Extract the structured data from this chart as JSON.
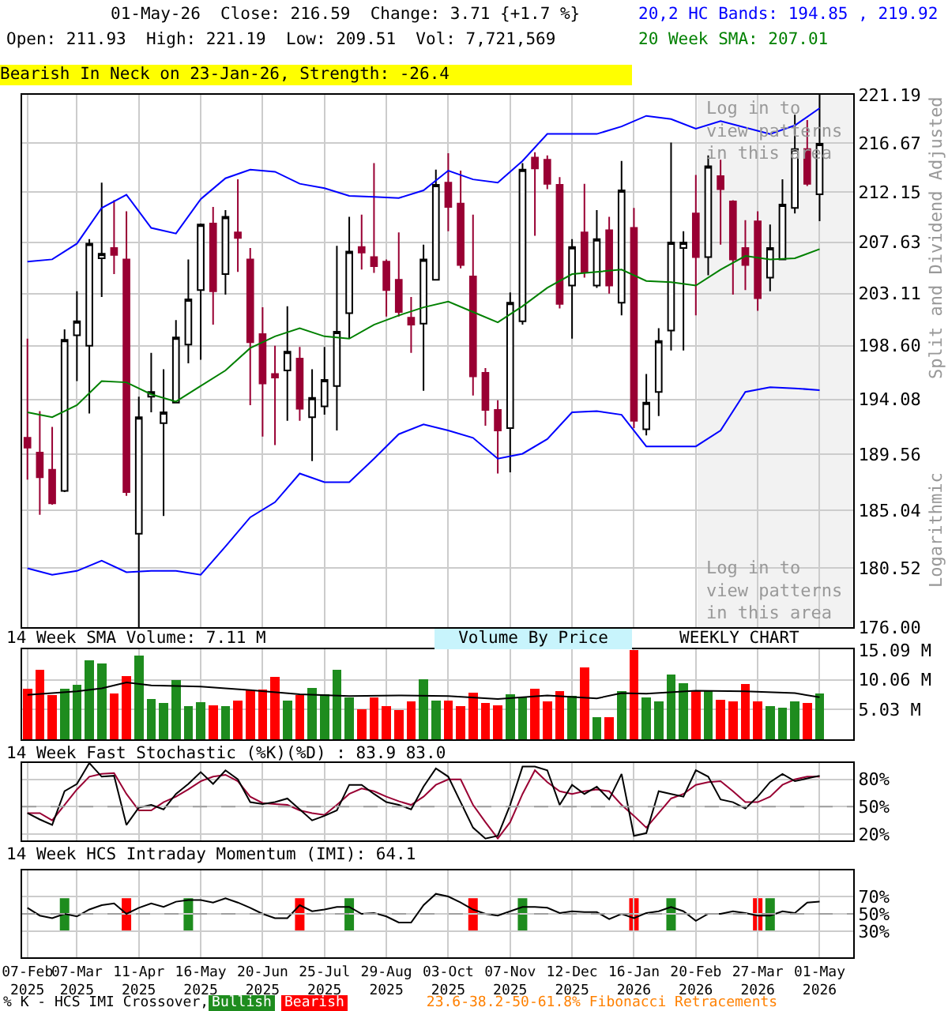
{
  "chart_data": [
    {
      "type": "candlestick",
      "title": "01-May-26  Close: 216.59  Change: 3.71 {+1.7 %}",
      "subtitle": "Open: 211.93  High: 221.19  Low: 209.51  Vol: 7,721,569",
      "ylabel": "Split and Dividend Adjusted",
      "annotations": [
        "Bearish In Neck on 23-Jan-26, Strength: -26.4",
        "Logarithmic"
      ],
      "x": [
        "2025-02-07",
        "2025-02-14",
        "2025-02-21",
        "2025-02-28",
        "2025-03-07",
        "2025-03-14",
        "2025-03-21",
        "2025-03-28",
        "2025-04-04",
        "2025-04-11",
        "2025-04-18",
        "2025-04-25",
        "2025-05-02",
        "2025-05-09",
        "2025-05-16",
        "2025-05-23",
        "2025-05-30",
        "2025-06-06",
        "2025-06-13",
        "2025-06-20",
        "2025-06-27",
        "2025-07-04",
        "2025-07-11",
        "2025-07-18",
        "2025-07-25",
        "2025-08-01",
        "2025-08-08",
        "2025-08-15",
        "2025-08-22",
        "2025-08-29",
        "2025-09-05",
        "2025-09-12",
        "2025-09-19",
        "2025-09-26",
        "2025-10-03",
        "2025-10-10",
        "2025-10-17",
        "2025-10-24",
        "2025-10-31",
        "2025-11-07",
        "2025-11-14",
        "2025-11-21",
        "2025-11-28",
        "2025-12-05",
        "2025-12-12",
        "2025-12-19",
        "2025-12-26",
        "2026-01-02",
        "2026-01-09",
        "2026-01-16",
        "2026-01-23",
        "2026-01-30",
        "2026-02-06",
        "2026-02-13",
        "2026-02-20",
        "2026-02-27",
        "2026-03-06",
        "2026-03-13",
        "2026-03-20",
        "2026-03-27",
        "2026-04-03",
        "2026-04-10",
        "2026-04-17",
        "2026-04-24",
        "2026-05-01"
      ],
      "ohlc": [
        [
          190.9,
          199.2,
          187.5,
          190.1
        ],
        [
          189.7,
          193.1,
          184.7,
          187.7
        ],
        [
          188.3,
          191.8,
          185.5,
          185.6
        ],
        [
          186.6,
          200.0,
          186.5,
          199.1
        ],
        [
          199.5,
          203.3,
          195.6,
          200.7
        ],
        [
          198.6,
          207.9,
          192.9,
          207.5
        ],
        [
          206.2,
          213.0,
          202.8,
          206.6
        ],
        [
          207.1,
          211.4,
          204.8,
          206.5
        ],
        [
          206.1,
          210.4,
          186.2,
          186.5
        ],
        [
          183.2,
          194.3,
          176.0,
          192.6
        ],
        [
          194.3,
          198.0,
          193.0,
          194.7
        ],
        [
          192.1,
          196.6,
          184.6,
          193.0
        ],
        [
          193.8,
          200.8,
          193.8,
          199.3
        ],
        [
          198.7,
          206.1,
          197.1,
          202.6
        ],
        [
          203.4,
          209.3,
          197.4,
          209.2
        ],
        [
          209.3,
          210.8,
          200.4,
          203.3
        ],
        [
          204.8,
          210.5,
          203.0,
          209.9
        ],
        [
          208.5,
          213.3,
          205.0,
          208.0
        ],
        [
          206.1,
          207.1,
          193.6,
          198.9
        ],
        [
          199.6,
          201.9,
          191.0,
          195.4
        ],
        [
          196.2,
          198.6,
          190.3,
          195.9
        ],
        [
          196.5,
          202.0,
          192.3,
          198.1
        ],
        [
          197.5,
          198.5,
          192.3,
          193.3
        ],
        [
          192.6,
          196.6,
          189.0,
          194.2
        ],
        [
          193.5,
          198.5,
          192.8,
          195.7
        ],
        [
          195.2,
          207.3,
          191.5,
          199.8
        ],
        [
          201.4,
          209.9,
          199.2,
          206.8
        ],
        [
          207.2,
          210.1,
          205.2,
          206.7
        ],
        [
          206.3,
          214.8,
          204.9,
          205.5
        ],
        [
          205.9,
          206.1,
          201.1,
          203.4
        ],
        [
          204.3,
          208.5,
          201.1,
          201.5
        ],
        [
          201.0,
          202.8,
          198.0,
          200.4
        ],
        [
          200.5,
          207.4,
          194.8,
          206.1
        ],
        [
          204.3,
          214.2,
          204.3,
          212.8
        ],
        [
          213.0,
          215.7,
          208.6,
          210.8
        ],
        [
          211.1,
          214.1,
          205.3,
          205.6
        ],
        [
          204.6,
          210.1,
          194.4,
          196.0
        ],
        [
          196.3,
          196.7,
          191.9,
          193.2
        ],
        [
          193.2,
          194.0,
          188.0,
          191.5
        ],
        [
          191.7,
          203.2,
          188.1,
          202.3
        ],
        [
          200.7,
          214.8,
          200.4,
          214.2
        ],
        [
          215.3,
          215.8,
          208.2,
          214.3
        ],
        [
          215.1,
          215.5,
          212.4,
          212.9
        ],
        [
          212.8,
          213.5,
          201.8,
          202.2
        ],
        [
          203.8,
          207.9,
          199.2,
          207.2
        ],
        [
          208.5,
          212.9,
          204.5,
          205.0
        ],
        [
          203.8,
          210.5,
          203.6,
          207.9
        ],
        [
          208.7,
          209.9,
          203.1,
          203.8
        ],
        [
          202.3,
          215.0,
          201.2,
          212.3
        ],
        [
          208.9,
          210.7,
          191.7,
          192.3
        ],
        [
          191.6,
          196.2,
          191.1,
          193.8
        ],
        [
          194.7,
          200.1,
          192.7,
          199.0
        ],
        [
          199.9,
          216.7,
          198.2,
          207.6
        ],
        [
          207.1,
          208.6,
          198.2,
          207.6
        ],
        [
          210.2,
          213.7,
          201.2,
          206.3
        ],
        [
          206.3,
          215.5,
          204.7,
          214.5
        ],
        [
          213.6,
          215.1,
          207.4,
          212.4
        ],
        [
          211.3,
          211.4,
          203.0,
          206.1
        ],
        [
          207.1,
          209.6,
          203.4,
          205.6
        ],
        [
          209.5,
          210.4,
          201.6,
          202.7
        ],
        [
          204.5,
          209.2,
          203.3,
          207.1
        ],
        [
          206.1,
          213.3,
          206.1,
          211.0
        ],
        [
          210.7,
          219.3,
          210.2,
          216.1
        ],
        [
          216.1,
          218.8,
          212.7,
          212.9
        ],
        [
          211.93,
          221.19,
          209.51,
          216.59
        ]
      ],
      "series": [
        {
          "type": "line",
          "name": "20,2 HC Bands: 194.85 , 219.92",
          "color": "#0000ff",
          "x": [
            "2025-02-07",
            "2025-02-21",
            "2025-03-07",
            "2025-03-21",
            "2025-04-04",
            "2025-04-18",
            "2025-05-02",
            "2025-05-16",
            "2025-05-30",
            "2025-06-13",
            "2025-06-27",
            "2025-07-11",
            "2025-07-25",
            "2025-08-08",
            "2025-08-22",
            "2025-09-05",
            "2025-09-19",
            "2025-10-03",
            "2025-10-17",
            "2025-10-31",
            "2025-11-14",
            "2025-11-28",
            "2025-12-12",
            "2025-12-26",
            "2026-01-09",
            "2026-01-23",
            "2026-02-06",
            "2026-02-20",
            "2026-03-06",
            "2026-03-20",
            "2026-04-03",
            "2026-04-17",
            "2026-05-01"
          ],
          "values": [
            205.9,
            206.1,
            207.5,
            210.7,
            211.9,
            208.9,
            208.4,
            211.5,
            213.4,
            214.2,
            214.0,
            212.9,
            212.5,
            211.8,
            211.7,
            211.6,
            212.3,
            214.1,
            213.3,
            213.0,
            215.0,
            217.5,
            217.5,
            217.5,
            218.2,
            219.2,
            218.9,
            218.0,
            218.7,
            218.1,
            217.5,
            218.3,
            219.92
          ]
        },
        {
          "type": "line",
          "color": "#0000ff",
          "x": [
            "2025-02-07",
            "2025-02-21",
            "2025-03-07",
            "2025-03-21",
            "2025-04-04",
            "2025-04-18",
            "2025-05-02",
            "2025-05-16",
            "2025-05-30",
            "2025-06-13",
            "2025-06-27",
            "2025-07-11",
            "2025-07-25",
            "2025-08-08",
            "2025-08-22",
            "2025-09-05",
            "2025-09-19",
            "2025-10-03",
            "2025-10-17",
            "2025-10-31",
            "2025-11-14",
            "2025-11-28",
            "2025-12-12",
            "2025-12-26",
            "2026-01-09",
            "2026-01-23",
            "2026-02-06",
            "2026-02-20",
            "2026-03-06",
            "2026-03-20",
            "2026-04-03",
            "2026-04-17",
            "2026-05-01"
          ],
          "values": [
            180.5,
            180.0,
            180.3,
            181.1,
            180.2,
            180.3,
            180.3,
            180.0,
            182.2,
            184.5,
            185.7,
            188.0,
            187.3,
            187.3,
            189.2,
            191.2,
            192.0,
            191.5,
            190.9,
            189.2,
            189.6,
            190.8,
            193.0,
            193.1,
            192.8,
            190.2,
            190.2,
            190.2,
            191.5,
            194.7,
            195.1,
            195.0,
            194.85
          ]
        },
        {
          "type": "line",
          "name": "20 Week SMA: 207.01",
          "color": "#008000",
          "x": [
            "2025-02-07",
            "2025-02-21",
            "2025-03-07",
            "2025-03-21",
            "2025-04-04",
            "2025-04-18",
            "2025-05-02",
            "2025-05-16",
            "2025-05-30",
            "2025-06-13",
            "2025-06-27",
            "2025-07-11",
            "2025-07-25",
            "2025-08-08",
            "2025-08-22",
            "2025-09-05",
            "2025-09-19",
            "2025-10-03",
            "2025-10-17",
            "2025-10-31",
            "2025-11-14",
            "2025-11-28",
            "2025-12-12",
            "2025-12-26",
            "2026-01-09",
            "2026-01-23",
            "2026-02-06",
            "2026-02-20",
            "2026-03-06",
            "2026-03-20",
            "2026-04-03",
            "2026-04-17",
            "2026-05-01"
          ],
          "values": [
            193.0,
            192.6,
            193.6,
            195.6,
            195.5,
            194.5,
            193.9,
            195.2,
            196.5,
            198.4,
            199.4,
            200.1,
            199.4,
            199.2,
            200.4,
            201.2,
            201.9,
            202.4,
            201.5,
            200.6,
            202.0,
            203.6,
            204.8,
            205.0,
            205.2,
            204.2,
            204.1,
            203.8,
            205.2,
            206.4,
            206.1,
            206.2,
            207.01
          ]
        }
      ],
      "xlim": [
        "2025-02-04",
        "2026-05-20"
      ],
      "ylim": [
        176,
        221.19
      ],
      "xticks": [
        {
          "value": "2025-02-07",
          "label": null
        },
        {
          "value": "2025-03-07",
          "label": null
        },
        {
          "value": "2025-04-11",
          "label": null
        },
        {
          "value": "2025-05-16",
          "label": null
        },
        {
          "value": "2025-06-20",
          "label": null
        },
        {
          "value": "2025-07-25",
          "label": null
        },
        {
          "value": "2025-08-29",
          "label": null
        },
        {
          "value": "2025-10-03",
          "label": null
        },
        {
          "value": "2025-11-07",
          "label": null
        },
        {
          "value": "2025-12-12",
          "label": null
        },
        {
          "value": "2026-01-16",
          "label": null
        },
        {
          "value": "2026-02-20",
          "label": null
        },
        {
          "value": "2026-03-27",
          "label": null
        },
        {
          "value": "2026-05-01",
          "label": null
        }
      ],
      "yticks": [
        {
          "value": 176,
          "label": "176.00"
        },
        180.52,
        185.04,
        189.56,
        194.08,
        {
          "value": 198.6,
          "label": "198.60"
        },
        203.11,
        207.63,
        212.15,
        216.67,
        221.19
      ],
      "log": true,
      "grid": true,
      "legend": "top right",
      "tick_labels": "y",
      "bands": [
        {
          "axis": "x",
          "from": "2026-02-21",
          "to": "2026-05-20",
          "label": "Log in to view patterns in this area",
          "color": "#f2f2f2"
        }
      ]
    },
    {
      "type": "bar",
      "title": "14 Week SMA Volume: 7.11 M",
      "annotations": [
        "Volume By Price",
        "WEEKLY CHART"
      ],
      "x": [
        "2025-02-07",
        "2025-02-14",
        "2025-02-21",
        "2025-02-28",
        "2025-03-07",
        "2025-03-14",
        "2025-03-21",
        "2025-03-28",
        "2025-04-04",
        "2025-04-11",
        "2025-04-18",
        "2025-04-25",
        "2025-05-02",
        "2025-05-09",
        "2025-05-16",
        "2025-05-23",
        "2025-05-30",
        "2025-06-06",
        "2025-06-13",
        "2025-06-20",
        "2025-06-27",
        "2025-07-04",
        "2025-07-11",
        "2025-07-18",
        "2025-07-25",
        "2025-08-01",
        "2025-08-08",
        "2025-08-15",
        "2025-08-22",
        "2025-08-29",
        "2025-09-05",
        "2025-09-12",
        "2025-09-19",
        "2025-09-26",
        "2025-10-03",
        "2025-10-10",
        "2025-10-17",
        "2025-10-24",
        "2025-10-31",
        "2025-11-07",
        "2025-11-14",
        "2025-11-21",
        "2025-11-28",
        "2025-12-05",
        "2025-12-12",
        "2025-12-19",
        "2025-12-26",
        "2026-01-02",
        "2026-01-09",
        "2026-01-16",
        "2026-01-23",
        "2026-01-30",
        "2026-02-06",
        "2026-02-13",
        "2026-02-20",
        "2026-02-27",
        "2026-03-06",
        "2026-03-13",
        "2026-03-20",
        "2026-03-27",
        "2026-04-03",
        "2026-04-10",
        "2026-04-17",
        "2026-04-24",
        "2026-05-01"
      ],
      "series": [
        {
          "type": "bar",
          "values": [
            8.5,
            11.7,
            7.5,
            8.6,
            9.2,
            13.3,
            12.8,
            7.7,
            10.7,
            14.1,
            6.8,
            6.1,
            10.0,
            5.6,
            6.3,
            5.8,
            5.6,
            6.6,
            8.3,
            8.4,
            10.6,
            6.6,
            7.5,
            8.7,
            7.6,
            11.8,
            7.1,
            5.1,
            7.1,
            5.6,
            4.9,
            6.4,
            10.2,
            6.6,
            6.6,
            5.6,
            7.9,
            6.1,
            5.8,
            7.6,
            7.1,
            8.5,
            6.4,
            8.2,
            7.3,
            12.2,
            3.8,
            3.8,
            8.2,
            15.1,
            7.1,
            6.4,
            11.0,
            9.5,
            8.1,
            8.1,
            6.7,
            6.4,
            9.3,
            6.4,
            5.6,
            5.3,
            6.4,
            6.1,
            7.7
          ],
          "colors": [
            "#ff0000",
            "#ff0000",
            "#ff0000",
            "#1e8c1e",
            "#1e8c1e",
            "#1e8c1e",
            "#1e8c1e",
            "#ff0000",
            "#ff0000",
            "#1e8c1e",
            "#1e8c1e",
            "#1e8c1e",
            "#1e8c1e",
            "#1e8c1e",
            "#1e8c1e",
            "#ff0000",
            "#1e8c1e",
            "#ff0000",
            "#ff0000",
            "#ff0000",
            "#ff0000",
            "#1e8c1e",
            "#ff0000",
            "#1e8c1e",
            "#1e8c1e",
            "#1e8c1e",
            "#1e8c1e",
            "#ff0000",
            "#ff0000",
            "#ff0000",
            "#ff0000",
            "#ff0000",
            "#1e8c1e",
            "#1e8c1e",
            "#ff0000",
            "#ff0000",
            "#ff0000",
            "#ff0000",
            "#ff0000",
            "#1e8c1e",
            "#1e8c1e",
            "#ff0000",
            "#ff0000",
            "#ff0000",
            "#1e8c1e",
            "#ff0000",
            "#1e8c1e",
            "#ff0000",
            "#1e8c1e",
            "#ff0000",
            "#1e8c1e",
            "#1e8c1e",
            "#1e8c1e",
            "#1e8c1e",
            "#ff0000",
            "#1e8c1e",
            "#ff0000",
            "#ff0000",
            "#ff0000",
            "#ff0000",
            "#1e8c1e",
            "#1e8c1e",
            "#1e8c1e",
            "#ff0000",
            "#1e8c1e"
          ]
        },
        {
          "type": "line",
          "color": "#000000",
          "x": [
            "2025-02-07",
            "2025-03-07",
            "2025-03-21",
            "2025-04-04",
            "2025-04-18",
            "2025-05-16",
            "2025-06-13",
            "2025-07-11",
            "2025-08-08",
            "2025-09-05",
            "2025-10-03",
            "2025-10-31",
            "2025-11-28",
            "2025-12-26",
            "2026-01-09",
            "2026-01-23",
            "2026-02-20",
            "2026-03-20",
            "2026-04-17",
            "2026-05-01"
          ],
          "values": [
            7.5,
            8.1,
            8.6,
            9.6,
            9.1,
            8.9,
            8.3,
            7.6,
            7.3,
            7.4,
            7.3,
            6.8,
            7.4,
            6.9,
            7.8,
            7.7,
            8.2,
            8.1,
            7.8,
            7.1
          ]
        }
      ],
      "xlim": [
        "2025-02-04",
        "2026-05-20"
      ],
      "ylim": [
        0,
        15.2
      ],
      "xticks": [
        {
          "value": "2025-02-07",
          "label": null
        },
        {
          "value": "2025-03-07",
          "label": null
        },
        {
          "value": "2025-04-11",
          "label": null
        },
        {
          "value": "2025-05-16",
          "label": null
        },
        {
          "value": "2025-06-20",
          "label": null
        },
        {
          "value": "2025-07-25",
          "label": null
        },
        {
          "value": "2025-08-29",
          "label": null
        },
        {
          "value": "2025-10-03",
          "label": null
        },
        {
          "value": "2025-11-07",
          "label": null
        },
        {
          "value": "2025-12-12",
          "label": null
        },
        {
          "value": "2026-01-16",
          "label": null
        },
        {
          "value": "2026-02-20",
          "label": null
        },
        {
          "value": "2026-03-27",
          "label": null
        },
        {
          "value": "2026-05-01",
          "label": null
        }
      ],
      "yticks": [
        {
          "value": 5.03,
          "label": "5.03 M"
        },
        {
          "value": 10.06,
          "label": "10.06 M"
        },
        {
          "value": 15.09,
          "label": "15.09 M"
        }
      ],
      "grid": true,
      "tick_labels": "y"
    },
    {
      "type": "line",
      "title": "14 Week Fast Stochastic (%K)(%D) : 83.9 83.0",
      "x": [
        "2025-02-07",
        "2025-02-14",
        "2025-02-21",
        "2025-02-28",
        "2025-03-07",
        "2025-03-14",
        "2025-03-21",
        "2025-03-28",
        "2025-04-04",
        "2025-04-11",
        "2025-04-18",
        "2025-04-25",
        "2025-05-02",
        "2025-05-09",
        "2025-05-16",
        "2025-05-23",
        "2025-05-30",
        "2025-06-06",
        "2025-06-13",
        "2025-06-20",
        "2025-06-27",
        "2025-07-04",
        "2025-07-11",
        "2025-07-18",
        "2025-07-25",
        "2025-08-01",
        "2025-08-08",
        "2025-08-15",
        "2025-08-22",
        "2025-08-29",
        "2025-09-05",
        "2025-09-12",
        "2025-09-19",
        "2025-09-26",
        "2025-10-03",
        "2025-10-10",
        "2025-10-17",
        "2025-10-24",
        "2025-10-31",
        "2025-11-07",
        "2025-11-14",
        "2025-11-21",
        "2025-11-28",
        "2025-12-05",
        "2025-12-12",
        "2025-12-19",
        "2025-12-26",
        "2026-01-02",
        "2026-01-09",
        "2026-01-16",
        "2026-01-23",
        "2026-01-30",
        "2026-02-06",
        "2026-02-13",
        "2026-02-20",
        "2026-02-27",
        "2026-03-06",
        "2026-03-13",
        "2026-03-20",
        "2026-03-27",
        "2026-04-03",
        "2026-04-10",
        "2026-04-17",
        "2026-04-24",
        "2026-05-01"
      ],
      "series": [
        {
          "type": "line",
          "color": "#990033",
          "values": [
            43,
            43,
            35,
            52,
            69,
            83,
            86,
            87,
            64,
            46,
            46,
            55,
            61,
            69,
            78,
            83,
            85,
            78,
            61,
            54,
            53,
            52,
            46,
            43,
            41,
            52,
            64,
            70,
            67,
            61,
            56,
            52,
            61,
            74,
            80,
            80,
            52,
            33,
            15,
            33,
            64,
            90,
            77,
            67,
            64,
            67,
            69,
            67,
            52,
            40,
            27,
            43,
            59,
            64,
            74,
            77,
            78,
            67,
            55,
            55,
            61,
            74,
            80,
            83,
            83
          ]
        },
        {
          "type": "line",
          "color": "#000000",
          "values": [
            43,
            36,
            30,
            67,
            75,
            98,
            83,
            84,
            30,
            49,
            52,
            47,
            64,
            75,
            88,
            75,
            90,
            80,
            55,
            53,
            55,
            59,
            47,
            35,
            40,
            46,
            74,
            74,
            64,
            55,
            52,
            47,
            72,
            92,
            83,
            55,
            27,
            15,
            18,
            52,
            94,
            94,
            90,
            52,
            74,
            64,
            72,
            58,
            86,
            18,
            21,
            67,
            64,
            61,
            90,
            83,
            58,
            55,
            48,
            61,
            77,
            86,
            78,
            81,
            84
          ]
        }
      ],
      "xlim": [
        "2025-02-04",
        "2026-05-20"
      ],
      "ylim": [
        13,
        98
      ],
      "xticks": [
        {
          "value": "2025-02-07",
          "label": null
        },
        {
          "value": "2025-03-07",
          "label": null
        },
        {
          "value": "2025-04-11",
          "label": null
        },
        {
          "value": "2025-05-16",
          "label": null
        },
        {
          "value": "2025-06-20",
          "label": null
        },
        {
          "value": "2025-07-25",
          "label": null
        },
        {
          "value": "2025-08-29",
          "label": null
        },
        {
          "value": "2025-10-03",
          "label": null
        },
        {
          "value": "2025-11-07",
          "label": null
        },
        {
          "value": "2025-12-12",
          "label": null
        },
        {
          "value": "2026-01-16",
          "label": null
        },
        {
          "value": "2026-02-20",
          "label": null
        },
        {
          "value": "2026-03-27",
          "label": null
        },
        {
          "value": "2026-05-01",
          "label": null
        }
      ],
      "yticks": [
        {
          "value": 20,
          "label": "20%"
        },
        {
          "value": 50,
          "label": "50%"
        },
        {
          "value": 80,
          "label": "80%"
        }
      ],
      "ref_lines": [
        {
          "axis": "y",
          "value": 50,
          "color": "#a0a0a0",
          "line_style": "dashed"
        }
      ],
      "grid": true,
      "tick_labels": "y"
    },
    {
      "type": "line",
      "title": "14 Week HCS Intraday Momentum (IMI): 64.1",
      "annotations": [
        "% K - HCS IMI Crossover,",
        "Bullish",
        "Bearish",
        "23.6-38.2-50-61.8% Fibonacci Retracements"
      ],
      "x": [
        "2025-02-07",
        "2025-02-14",
        "2025-02-21",
        "2025-02-28",
        "2025-03-07",
        "2025-03-14",
        "2025-03-21",
        "2025-03-28",
        "2025-04-04",
        "2025-04-11",
        "2025-04-18",
        "2025-04-25",
        "2025-05-02",
        "2025-05-09",
        "2025-05-16",
        "2025-05-23",
        "2025-05-30",
        "2025-06-06",
        "2025-06-13",
        "2025-06-20",
        "2025-06-27",
        "2025-07-04",
        "2025-07-11",
        "2025-07-18",
        "2025-07-25",
        "2025-08-01",
        "2025-08-08",
        "2025-08-15",
        "2025-08-22",
        "2025-08-29",
        "2025-09-05",
        "2025-09-12",
        "2025-09-19",
        "2025-09-26",
        "2025-10-03",
        "2025-10-10",
        "2025-10-17",
        "2025-10-24",
        "2025-10-31",
        "2025-11-07",
        "2025-11-14",
        "2025-11-21",
        "2025-11-28",
        "2025-12-05",
        "2025-12-12",
        "2025-12-19",
        "2025-12-26",
        "2026-01-02",
        "2026-01-09",
        "2026-01-16",
        "2026-01-23",
        "2026-01-30",
        "2026-02-06",
        "2026-02-13",
        "2026-02-20",
        "2026-02-27",
        "2026-03-06",
        "2026-03-13",
        "2026-03-20",
        "2026-03-27",
        "2026-04-03",
        "2026-04-10",
        "2026-04-17",
        "2026-04-24",
        "2026-05-01"
      ],
      "series": [
        {
          "type": "line",
          "color": "#000000",
          "values": [
            57,
            48,
            45,
            50,
            47,
            55,
            60,
            62,
            50,
            57,
            62,
            58,
            64,
            66,
            66,
            63,
            68,
            63,
            57,
            50,
            45,
            45,
            60,
            53,
            55,
            58,
            58,
            50,
            51,
            47,
            40,
            40,
            60,
            73,
            70,
            63,
            55,
            50,
            48,
            53,
            58,
            58,
            57,
            51,
            53,
            52,
            52,
            44,
            50,
            45,
            51,
            53,
            58,
            53,
            42,
            50,
            50,
            53,
            51,
            48,
            48,
            53,
            51,
            63,
            64
          ]
        }
      ],
      "xlim": [
        "2025-02-04",
        "2026-05-20"
      ],
      "ylim": [
        0,
        100
      ],
      "xticks": [
        {
          "value": "2025-02-07",
          "label": "07-Feb\n2025"
        },
        {
          "value": "2025-03-07",
          "label": "07-Mar\n2025"
        },
        {
          "value": "2025-04-11",
          "label": "11-Apr\n2025"
        },
        {
          "value": "2025-05-16",
          "label": "16-May\n2025"
        },
        {
          "value": "2025-06-20",
          "label": "20-Jun\n2025"
        },
        {
          "value": "2025-07-25",
          "label": "25-Jul\n2025"
        },
        {
          "value": "2025-08-29",
          "label": "29-Aug\n2025"
        },
        {
          "value": "2025-10-03",
          "label": "03-Oct\n2025"
        },
        {
          "value": "2025-11-07",
          "label": "07-Nov\n2025"
        },
        {
          "value": "2025-12-12",
          "label": "12-Dec\n2025"
        },
        {
          "value": "2026-01-16",
          "label": "16-Jan\n2026"
        },
        {
          "value": "2026-02-20",
          "label": "20-Feb\n2026"
        },
        {
          "value": "2026-03-27",
          "label": "27-Mar\n2026"
        },
        {
          "value": "2026-05-01",
          "label": "01-May\n2026"
        }
      ],
      "yticks": [
        {
          "value": 30,
          "label": "30%"
        },
        {
          "value": 50,
          "label": "50%"
        },
        {
          "value": 70,
          "label": "70%"
        }
      ],
      "ref_lines": [
        {
          "axis": "y",
          "value": 50,
          "color": "#a0a0a0",
          "line_style": "dashed"
        },
        {
          "axis": "x",
          "value": "2025-02-28",
          "color": "#1e8c1e"
        },
        {
          "axis": "x",
          "value": "2025-04-04",
          "color": "#ff0000"
        },
        {
          "axis": "x",
          "value": "2025-05-09",
          "color": "#1e8c1e"
        },
        {
          "axis": "x",
          "value": "2025-07-11",
          "color": "#ff0000"
        },
        {
          "axis": "x",
          "value": "2025-08-08",
          "color": "#1e8c1e"
        },
        {
          "axis": "x",
          "value": "2025-10-17",
          "color": "#ff0000"
        },
        {
          "axis": "x",
          "value": "2025-11-14",
          "color": "#1e8c1e"
        },
        {
          "axis": "x",
          "value": "2026-01-16",
          "color": "#ff0000"
        },
        {
          "axis": "x",
          "value": "2026-02-06",
          "color": "#1e8c1e"
        },
        {
          "axis": "x",
          "value": "2026-03-27",
          "color": "#ff0000"
        },
        {
          "axis": "x",
          "value": "2026-04-03",
          "color": "#1e8c1e"
        }
      ],
      "grid": true
    }
  ]
}
